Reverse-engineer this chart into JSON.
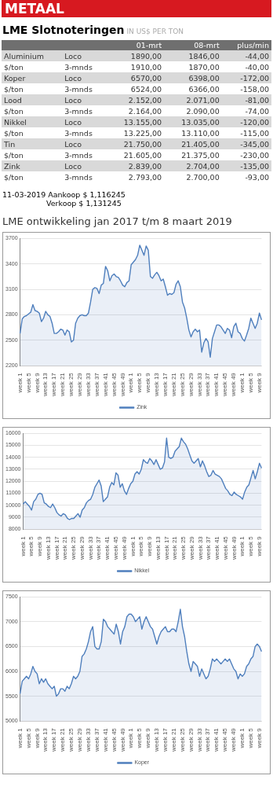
{
  "chart_data": [
    {
      "type": "other",
      "title": "LME Slotnoteringen",
      "subtitle": "IN US$ PER TON",
      "annotations": [
        "METAAL",
        "11-03-2019 Aankoop $ 1,116245",
        "Verkoop $ 1,131245"
      ],
      "categories": [
        "01-mrt",
        "08-mrt",
        "plus/min"
      ],
      "y_categories": [
        "Aluminium",
        "$/ton",
        "Koper",
        "$/ton",
        "Lood",
        "$/ton",
        "Nikkel",
        "$/ton",
        "Tin",
        "$/ton",
        "Zink",
        "$/ton"
      ],
      "y2_categories": [
        "Loco",
        "3-mnds",
        "Loco",
        "3-mnds",
        "Loco",
        "3-mnds",
        "Loco",
        "3-mnds",
        "Loco",
        "3-mnds",
        "Loco",
        "3-mnds"
      ],
      "cell_labels": [
        [
          "1890,00",
          "1846,00",
          "-44,00"
        ],
        [
          "1910,00",
          "1870,00",
          "-40,00"
        ],
        [
          "6570,00",
          "6398,00",
          "-172,00"
        ],
        [
          "6524,00",
          "6366,00",
          "-158,00"
        ],
        [
          "2.152,00",
          "2.071,00",
          "-81,00"
        ],
        [
          "2.164,00",
          "2.090,00",
          "-74,00"
        ],
        [
          "13.155,00",
          "13.035,00",
          "-120,00"
        ],
        [
          "13.225,00",
          "13.110,00",
          "-115,00"
        ],
        [
          "21.750,00",
          "21.405,00",
          "-345,00"
        ],
        [
          "21.605,00",
          "21.375,00",
          "-230,00"
        ],
        [
          "2.839,00",
          "2.704,00",
          "-135,00"
        ],
        [
          "2.793,00",
          "2.700,00",
          "-93,00"
        ]
      ]
    },
    {
      "type": "area",
      "title": "LME ontwikkeling jan 2017 t/m 8 maart 2019",
      "ylim": [
        2200,
        3700
      ],
      "yticks": [
        2200,
        2500,
        2800,
        3100,
        3400,
        3700
      ],
      "grid": "y",
      "legend": "bottom",
      "marker": "none",
      "categories": [
        "week 1",
        null,
        null,
        null,
        "week 5",
        null,
        null,
        null,
        "week 9",
        null,
        null,
        null,
        "week 13",
        null,
        null,
        null,
        "week 17",
        null,
        null,
        null,
        "week 21",
        null,
        null,
        null,
        "week 25",
        null,
        null,
        null,
        "week 29",
        null,
        null,
        null,
        "week 33",
        null,
        null,
        null,
        "week 37",
        null,
        null,
        null,
        "week 41",
        null,
        null,
        null,
        "week 45",
        null,
        null,
        null,
        "week 49",
        null,
        null,
        null,
        "week 1",
        null,
        null,
        null,
        "week 5",
        null,
        null,
        null,
        "week 9",
        null,
        null,
        null,
        "week 13",
        null,
        null,
        null,
        "week 17",
        null,
        null,
        null,
        "week 21",
        null,
        null,
        null,
        "week 25",
        null,
        null,
        null,
        "week 29",
        null,
        null,
        null,
        "week 33",
        null,
        null,
        null,
        "week 37",
        null,
        null,
        null,
        "week 41",
        null,
        null,
        null,
        "week 45",
        null,
        null,
        null,
        "week 49",
        null,
        null,
        null,
        "week 1",
        null,
        null,
        null,
        "week 5",
        null,
        null,
        null,
        "week 9",
        null
      ],
      "series": [
        {
          "name": "Zink",
          "color": "#4f7fbd",
          "values": [
            2580,
            2750,
            2780,
            2790,
            2810,
            2830,
            2920,
            2850,
            2840,
            2820,
            2720,
            2760,
            2840,
            2800,
            2780,
            2700,
            2580,
            2580,
            2600,
            2630,
            2620,
            2560,
            2620,
            2600,
            2480,
            2500,
            2700,
            2760,
            2790,
            2800,
            2790,
            2790,
            2820,
            2950,
            3100,
            3120,
            3110,
            3050,
            3150,
            3170,
            3370,
            3320,
            3200,
            3260,
            3280,
            3250,
            3240,
            3200,
            3150,
            3130,
            3180,
            3200,
            3390,
            3420,
            3450,
            3500,
            3620,
            3560,
            3500,
            3610,
            3560,
            3250,
            3230,
            3270,
            3300,
            3260,
            3200,
            3220,
            3130,
            3030,
            3050,
            3040,
            3060,
            3160,
            3200,
            3130,
            2950,
            2880,
            2760,
            2620,
            2540,
            2600,
            2630,
            2600,
            2620,
            2360,
            2470,
            2520,
            2480,
            2300,
            2520,
            2600,
            2680,
            2680,
            2660,
            2620,
            2580,
            2640,
            2620,
            2530,
            2660,
            2700,
            2600,
            2580,
            2520,
            2490,
            2560,
            2640,
            2760,
            2700,
            2640,
            2700,
            2820,
            2740
          ]
        }
      ]
    },
    {
      "type": "area",
      "ylim": [
        8000,
        16000
      ],
      "yticks": [
        8000,
        9000,
        10000,
        11000,
        12000,
        13000,
        14000,
        15000,
        16000
      ],
      "grid": "y",
      "legend": "bottom",
      "marker": "none",
      "categories": [
        "week 1",
        null,
        null,
        null,
        "week 5",
        null,
        null,
        null,
        "week 9",
        null,
        null,
        null,
        "week 13",
        null,
        null,
        null,
        "week 17",
        null,
        null,
        null,
        "week 21",
        null,
        null,
        null,
        "week 25",
        null,
        null,
        null,
        "week 29",
        null,
        null,
        null,
        "week 33",
        null,
        null,
        null,
        "week 37",
        null,
        null,
        null,
        "week 41",
        null,
        null,
        null,
        "week 45",
        null,
        null,
        null,
        "week 49",
        null,
        null,
        null,
        "week 1",
        null,
        null,
        null,
        "week 5",
        null,
        null,
        null,
        "week 9",
        null,
        null,
        null,
        "week 13",
        null,
        null,
        null,
        "week 17",
        null,
        null,
        null,
        "week 21",
        null,
        null,
        null,
        "week 25",
        null,
        null,
        null,
        "week 29",
        null,
        null,
        null,
        "week 33",
        null,
        null,
        null,
        "week 37",
        null,
        null,
        null,
        "week 41",
        null,
        null,
        null,
        "week 45",
        null,
        null,
        null,
        "week 49",
        null,
        null,
        null,
        "week 1",
        null,
        null,
        null,
        "week 5",
        null,
        null,
        null,
        "week 9",
        null
      ],
      "series": [
        {
          "name": "Nikkel",
          "color": "#4f7fbd",
          "values": [
            10100,
            10300,
            10100,
            9900,
            9600,
            10300,
            10500,
            10900,
            11000,
            10900,
            10200,
            10100,
            9900,
            9800,
            10100,
            9800,
            9400,
            9200,
            9100,
            9300,
            9200,
            8900,
            8800,
            8900,
            8900,
            9100,
            9300,
            9000,
            9600,
            9800,
            10200,
            10400,
            10500,
            10900,
            11500,
            11800,
            12100,
            11600,
            10300,
            10500,
            10700,
            11500,
            11900,
            11700,
            12700,
            12500,
            11500,
            11800,
            11200,
            10900,
            11400,
            11800,
            12000,
            12600,
            12800,
            12600,
            13000,
            13800,
            13600,
            13500,
            13900,
            13700,
            13400,
            13800,
            13400,
            13000,
            13100,
            13600,
            15600,
            14000,
            13900,
            14000,
            14500,
            14700,
            14900,
            15600,
            15300,
            15100,
            14700,
            14200,
            13700,
            13500,
            13700,
            13900,
            13200,
            13700,
            13300,
            12800,
            12400,
            12500,
            12900,
            12600,
            12500,
            12400,
            12200,
            11800,
            11400,
            11200,
            10900,
            10800,
            11100,
            10900,
            10800,
            10700,
            10500,
            11100,
            11500,
            11700,
            12300,
            12900,
            12200,
            12800,
            13500,
            13100
          ]
        }
      ]
    },
    {
      "type": "area",
      "ylim": [
        5000,
        7500
      ],
      "yticks": [
        5000,
        5500,
        6000,
        6500,
        7000,
        7500
      ],
      "grid": "y",
      "legend": "bottom",
      "marker": "none",
      "categories": [
        "week 1",
        null,
        null,
        null,
        "week 5",
        null,
        null,
        null,
        "week 9",
        null,
        null,
        null,
        "week 13",
        null,
        null,
        null,
        "week 17",
        null,
        null,
        null,
        "week 21",
        null,
        null,
        null,
        "week 25",
        null,
        null,
        null,
        "week 29",
        null,
        null,
        null,
        "week 33",
        null,
        null,
        null,
        "week 37",
        null,
        null,
        null,
        "week 41",
        null,
        null,
        null,
        "week 45",
        null,
        null,
        null,
        "week 49",
        null,
        null,
        null,
        "week 1",
        null,
        null,
        null,
        "week 5",
        null,
        null,
        null,
        "week 9",
        null,
        null,
        null,
        "week 13",
        null,
        null,
        null,
        "week 17",
        null,
        null,
        null,
        "week 21",
        null,
        null,
        null,
        "week 25",
        null,
        null,
        null,
        "week 29",
        null,
        null,
        null,
        "week 33",
        null,
        null,
        null,
        "week 37",
        null,
        null,
        null,
        "week 41",
        null,
        null,
        null,
        "week 45",
        null,
        null,
        null,
        "week 49",
        null,
        null,
        null,
        "week 1",
        null,
        null,
        null,
        "week 5",
        null,
        null,
        null,
        "week 9",
        null
      ],
      "series": [
        {
          "name": "Koper",
          "color": "#4f7fbd",
          "values": [
            5550,
            5800,
            5850,
            5900,
            5850,
            5950,
            6100,
            6000,
            5950,
            5750,
            5850,
            5780,
            5850,
            5750,
            5700,
            5650,
            5700,
            5500,
            5550,
            5650,
            5650,
            5600,
            5700,
            5650,
            5750,
            5900,
            5850,
            5900,
            6000,
            6300,
            6350,
            6450,
            6600,
            6800,
            6900,
            6500,
            6450,
            6450,
            6600,
            7050,
            7000,
            6900,
            6850,
            6800,
            6750,
            6950,
            6800,
            6550,
            6800,
            6900,
            7100,
            7150,
            7150,
            7100,
            7000,
            7050,
            7100,
            6850,
            7000,
            7100,
            7000,
            6900,
            6850,
            6700,
            6550,
            6700,
            6800,
            6850,
            6900,
            6800,
            6800,
            6850,
            6850,
            6800,
            7000,
            7250,
            6900,
            6700,
            6400,
            6150,
            6000,
            6200,
            6150,
            6100,
            5900,
            6050,
            5950,
            5850,
            5900,
            6050,
            6250,
            6200,
            6250,
            6200,
            6150,
            6200,
            6250,
            6200,
            6250,
            6150,
            6050,
            6000,
            5850,
            5950,
            5900,
            5950,
            6100,
            6150,
            6250,
            6300,
            6500,
            6550,
            6500,
            6400
          ]
        }
      ]
    }
  ]
}
